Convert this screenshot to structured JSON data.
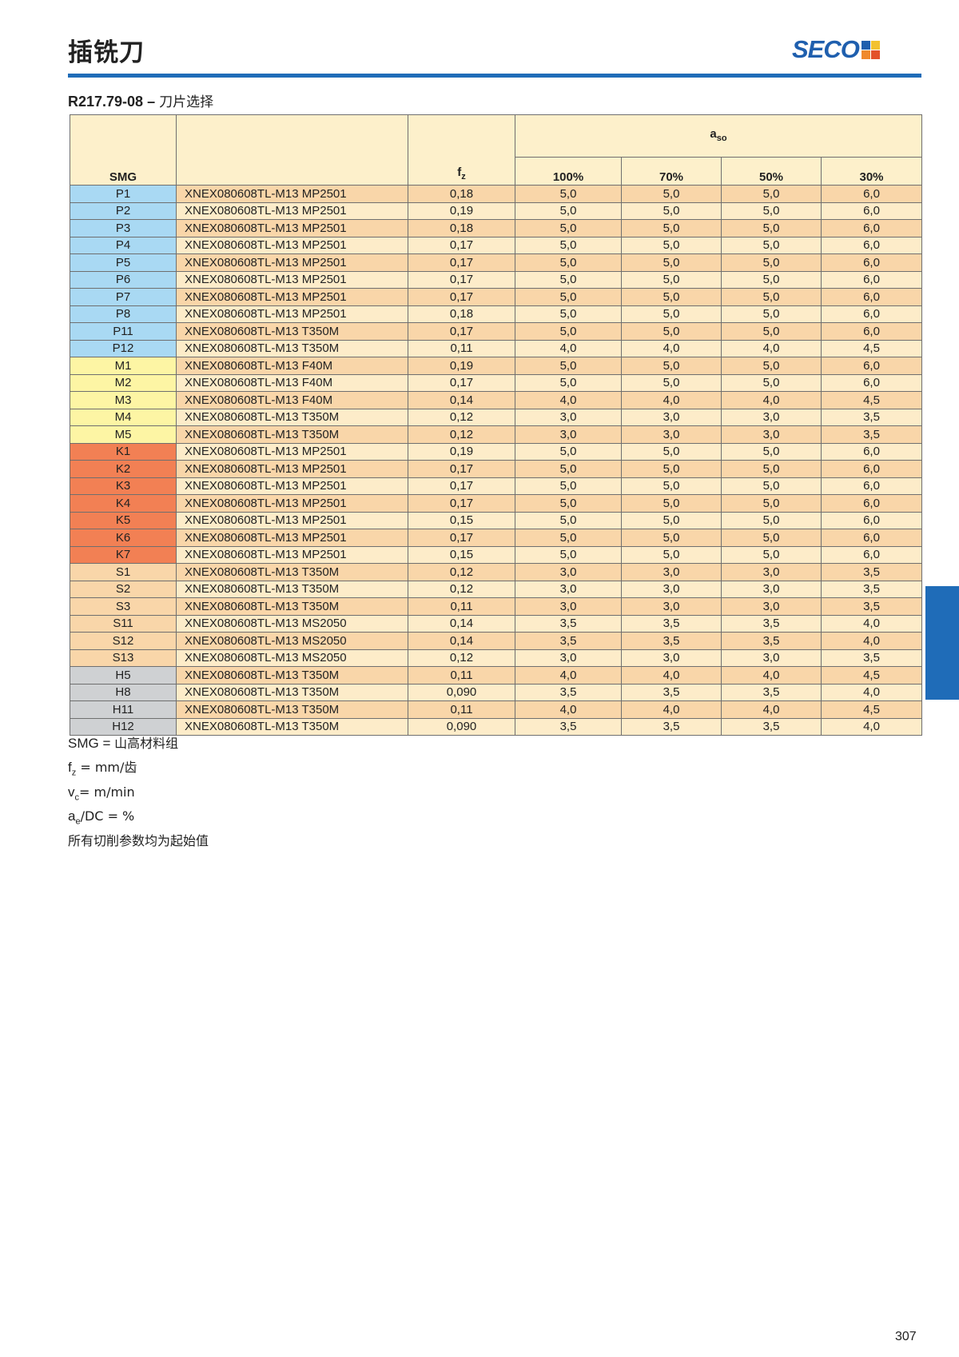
{
  "header": {
    "title": "插铣刀",
    "logo_text": "SECO",
    "logo_colors": [
      "#1f5fae",
      "#f2c230",
      "#f08a2c",
      "#e3512a"
    ],
    "accent_color": "#1f6cb8"
  },
  "section": {
    "code": "R217.79-08 – ",
    "title": "刀片选择"
  },
  "table": {
    "headers": {
      "smg": "SMG",
      "insert": "",
      "fz_base": "f",
      "fz_sub": "z",
      "aso_base": "a",
      "aso_sub": "so",
      "pct": [
        "100%",
        "70%",
        "50%",
        "30%"
      ]
    },
    "group_colors": {
      "P": "#a9d9f3",
      "M": "#fdf5a4",
      "K": "#f28054",
      "S": "#f9d6a9",
      "H": "#cfd1d3"
    },
    "rows": [
      {
        "smg": "P1",
        "group": "P",
        "insert": "XNEX080608TL-M13 MP2501",
        "fz": "0,18",
        "a": [
          "5,0",
          "5,0",
          "5,0",
          "6,0"
        ]
      },
      {
        "smg": "P2",
        "group": "P",
        "insert": "XNEX080608TL-M13 MP2501",
        "fz": "0,19",
        "a": [
          "5,0",
          "5,0",
          "5,0",
          "6,0"
        ]
      },
      {
        "smg": "P3",
        "group": "P",
        "insert": "XNEX080608TL-M13 MP2501",
        "fz": "0,18",
        "a": [
          "5,0",
          "5,0",
          "5,0",
          "6,0"
        ]
      },
      {
        "smg": "P4",
        "group": "P",
        "insert": "XNEX080608TL-M13 MP2501",
        "fz": "0,17",
        "a": [
          "5,0",
          "5,0",
          "5,0",
          "6,0"
        ]
      },
      {
        "smg": "P5",
        "group": "P",
        "insert": "XNEX080608TL-M13 MP2501",
        "fz": "0,17",
        "a": [
          "5,0",
          "5,0",
          "5,0",
          "6,0"
        ]
      },
      {
        "smg": "P6",
        "group": "P",
        "insert": "XNEX080608TL-M13 MP2501",
        "fz": "0,17",
        "a": [
          "5,0",
          "5,0",
          "5,0",
          "6,0"
        ]
      },
      {
        "smg": "P7",
        "group": "P",
        "insert": "XNEX080608TL-M13 MP2501",
        "fz": "0,17",
        "a": [
          "5,0",
          "5,0",
          "5,0",
          "6,0"
        ]
      },
      {
        "smg": "P8",
        "group": "P",
        "insert": "XNEX080608TL-M13 MP2501",
        "fz": "0,18",
        "a": [
          "5,0",
          "5,0",
          "5,0",
          "6,0"
        ]
      },
      {
        "smg": "P11",
        "group": "P",
        "insert": "XNEX080608TL-M13 T350M",
        "fz": "0,17",
        "a": [
          "5,0",
          "5,0",
          "5,0",
          "6,0"
        ]
      },
      {
        "smg": "P12",
        "group": "P",
        "insert": "XNEX080608TL-M13 T350M",
        "fz": "0,11",
        "a": [
          "4,0",
          "4,0",
          "4,0",
          "4,5"
        ]
      },
      {
        "smg": "M1",
        "group": "M",
        "insert": "XNEX080608TL-M13 F40M",
        "fz": "0,19",
        "a": [
          "5,0",
          "5,0",
          "5,0",
          "6,0"
        ]
      },
      {
        "smg": "M2",
        "group": "M",
        "insert": "XNEX080608TL-M13 F40M",
        "fz": "0,17",
        "a": [
          "5,0",
          "5,0",
          "5,0",
          "6,0"
        ]
      },
      {
        "smg": "M3",
        "group": "M",
        "insert": "XNEX080608TL-M13 F40M",
        "fz": "0,14",
        "a": [
          "4,0",
          "4,0",
          "4,0",
          "4,5"
        ]
      },
      {
        "smg": "M4",
        "group": "M",
        "insert": "XNEX080608TL-M13 T350M",
        "fz": "0,12",
        "a": [
          "3,0",
          "3,0",
          "3,0",
          "3,5"
        ]
      },
      {
        "smg": "M5",
        "group": "M",
        "insert": "XNEX080608TL-M13 T350M",
        "fz": "0,12",
        "a": [
          "3,0",
          "3,0",
          "3,0",
          "3,5"
        ]
      },
      {
        "smg": "K1",
        "group": "K",
        "insert": "XNEX080608TL-M13 MP2501",
        "fz": "0,19",
        "a": [
          "5,0",
          "5,0",
          "5,0",
          "6,0"
        ]
      },
      {
        "smg": "K2",
        "group": "K",
        "insert": "XNEX080608TL-M13 MP2501",
        "fz": "0,17",
        "a": [
          "5,0",
          "5,0",
          "5,0",
          "6,0"
        ]
      },
      {
        "smg": "K3",
        "group": "K",
        "insert": "XNEX080608TL-M13 MP2501",
        "fz": "0,17",
        "a": [
          "5,0",
          "5,0",
          "5,0",
          "6,0"
        ]
      },
      {
        "smg": "K4",
        "group": "K",
        "insert": "XNEX080608TL-M13 MP2501",
        "fz": "0,17",
        "a": [
          "5,0",
          "5,0",
          "5,0",
          "6,0"
        ]
      },
      {
        "smg": "K5",
        "group": "K",
        "insert": "XNEX080608TL-M13 MP2501",
        "fz": "0,15",
        "a": [
          "5,0",
          "5,0",
          "5,0",
          "6,0"
        ]
      },
      {
        "smg": "K6",
        "group": "K",
        "insert": "XNEX080608TL-M13 MP2501",
        "fz": "0,17",
        "a": [
          "5,0",
          "5,0",
          "5,0",
          "6,0"
        ]
      },
      {
        "smg": "K7",
        "group": "K",
        "insert": "XNEX080608TL-M13 MP2501",
        "fz": "0,15",
        "a": [
          "5,0",
          "5,0",
          "5,0",
          "6,0"
        ]
      },
      {
        "smg": "S1",
        "group": "S",
        "insert": "XNEX080608TL-M13 T350M",
        "fz": "0,12",
        "a": [
          "3,0",
          "3,0",
          "3,0",
          "3,5"
        ]
      },
      {
        "smg": "S2",
        "group": "S",
        "insert": "XNEX080608TL-M13 T350M",
        "fz": "0,12",
        "a": [
          "3,0",
          "3,0",
          "3,0",
          "3,5"
        ]
      },
      {
        "smg": "S3",
        "group": "S",
        "insert": "XNEX080608TL-M13 T350M",
        "fz": "0,11",
        "a": [
          "3,0",
          "3,0",
          "3,0",
          "3,5"
        ]
      },
      {
        "smg": "S11",
        "group": "S",
        "insert": "XNEX080608TL-M13 MS2050",
        "fz": "0,14",
        "a": [
          "3,5",
          "3,5",
          "3,5",
          "4,0"
        ]
      },
      {
        "smg": "S12",
        "group": "S",
        "insert": "XNEX080608TL-M13 MS2050",
        "fz": "0,14",
        "a": [
          "3,5",
          "3,5",
          "3,5",
          "4,0"
        ]
      },
      {
        "smg": "S13",
        "group": "S",
        "insert": "XNEX080608TL-M13 MS2050",
        "fz": "0,12",
        "a": [
          "3,0",
          "3,0",
          "3,0",
          "3,5"
        ]
      },
      {
        "smg": "H5",
        "group": "H",
        "insert": "XNEX080608TL-M13 T350M",
        "fz": "0,11",
        "a": [
          "4,0",
          "4,0",
          "4,0",
          "4,5"
        ]
      },
      {
        "smg": "H8",
        "group": "H",
        "insert": "XNEX080608TL-M13 T350M",
        "fz": "0,090",
        "a": [
          "3,5",
          "3,5",
          "3,5",
          "4,0"
        ]
      },
      {
        "smg": "H11",
        "group": "H",
        "insert": "XNEX080608TL-M13 T350M",
        "fz": "0,11",
        "a": [
          "4,0",
          "4,0",
          "4,0",
          "4,5"
        ]
      },
      {
        "smg": "H12",
        "group": "H",
        "insert": "XNEX080608TL-M13 T350M",
        "fz": "0,090",
        "a": [
          "3,5",
          "3,5",
          "3,5",
          "4,0"
        ]
      }
    ]
  },
  "legend": [
    {
      "base": "SMG = ",
      "sub": "",
      "rest": "山高材料组"
    },
    {
      "base": "f",
      "sub": "z",
      "rest": " = mm/齿"
    },
    {
      "base": "v",
      "sub": "c",
      "rest": "= m/min"
    },
    {
      "base": "a",
      "sub": "e",
      "rest": "/DC = %"
    },
    {
      "base": "",
      "sub": "",
      "rest": "所有切削参数均为起始值"
    }
  ],
  "page_number": "307"
}
